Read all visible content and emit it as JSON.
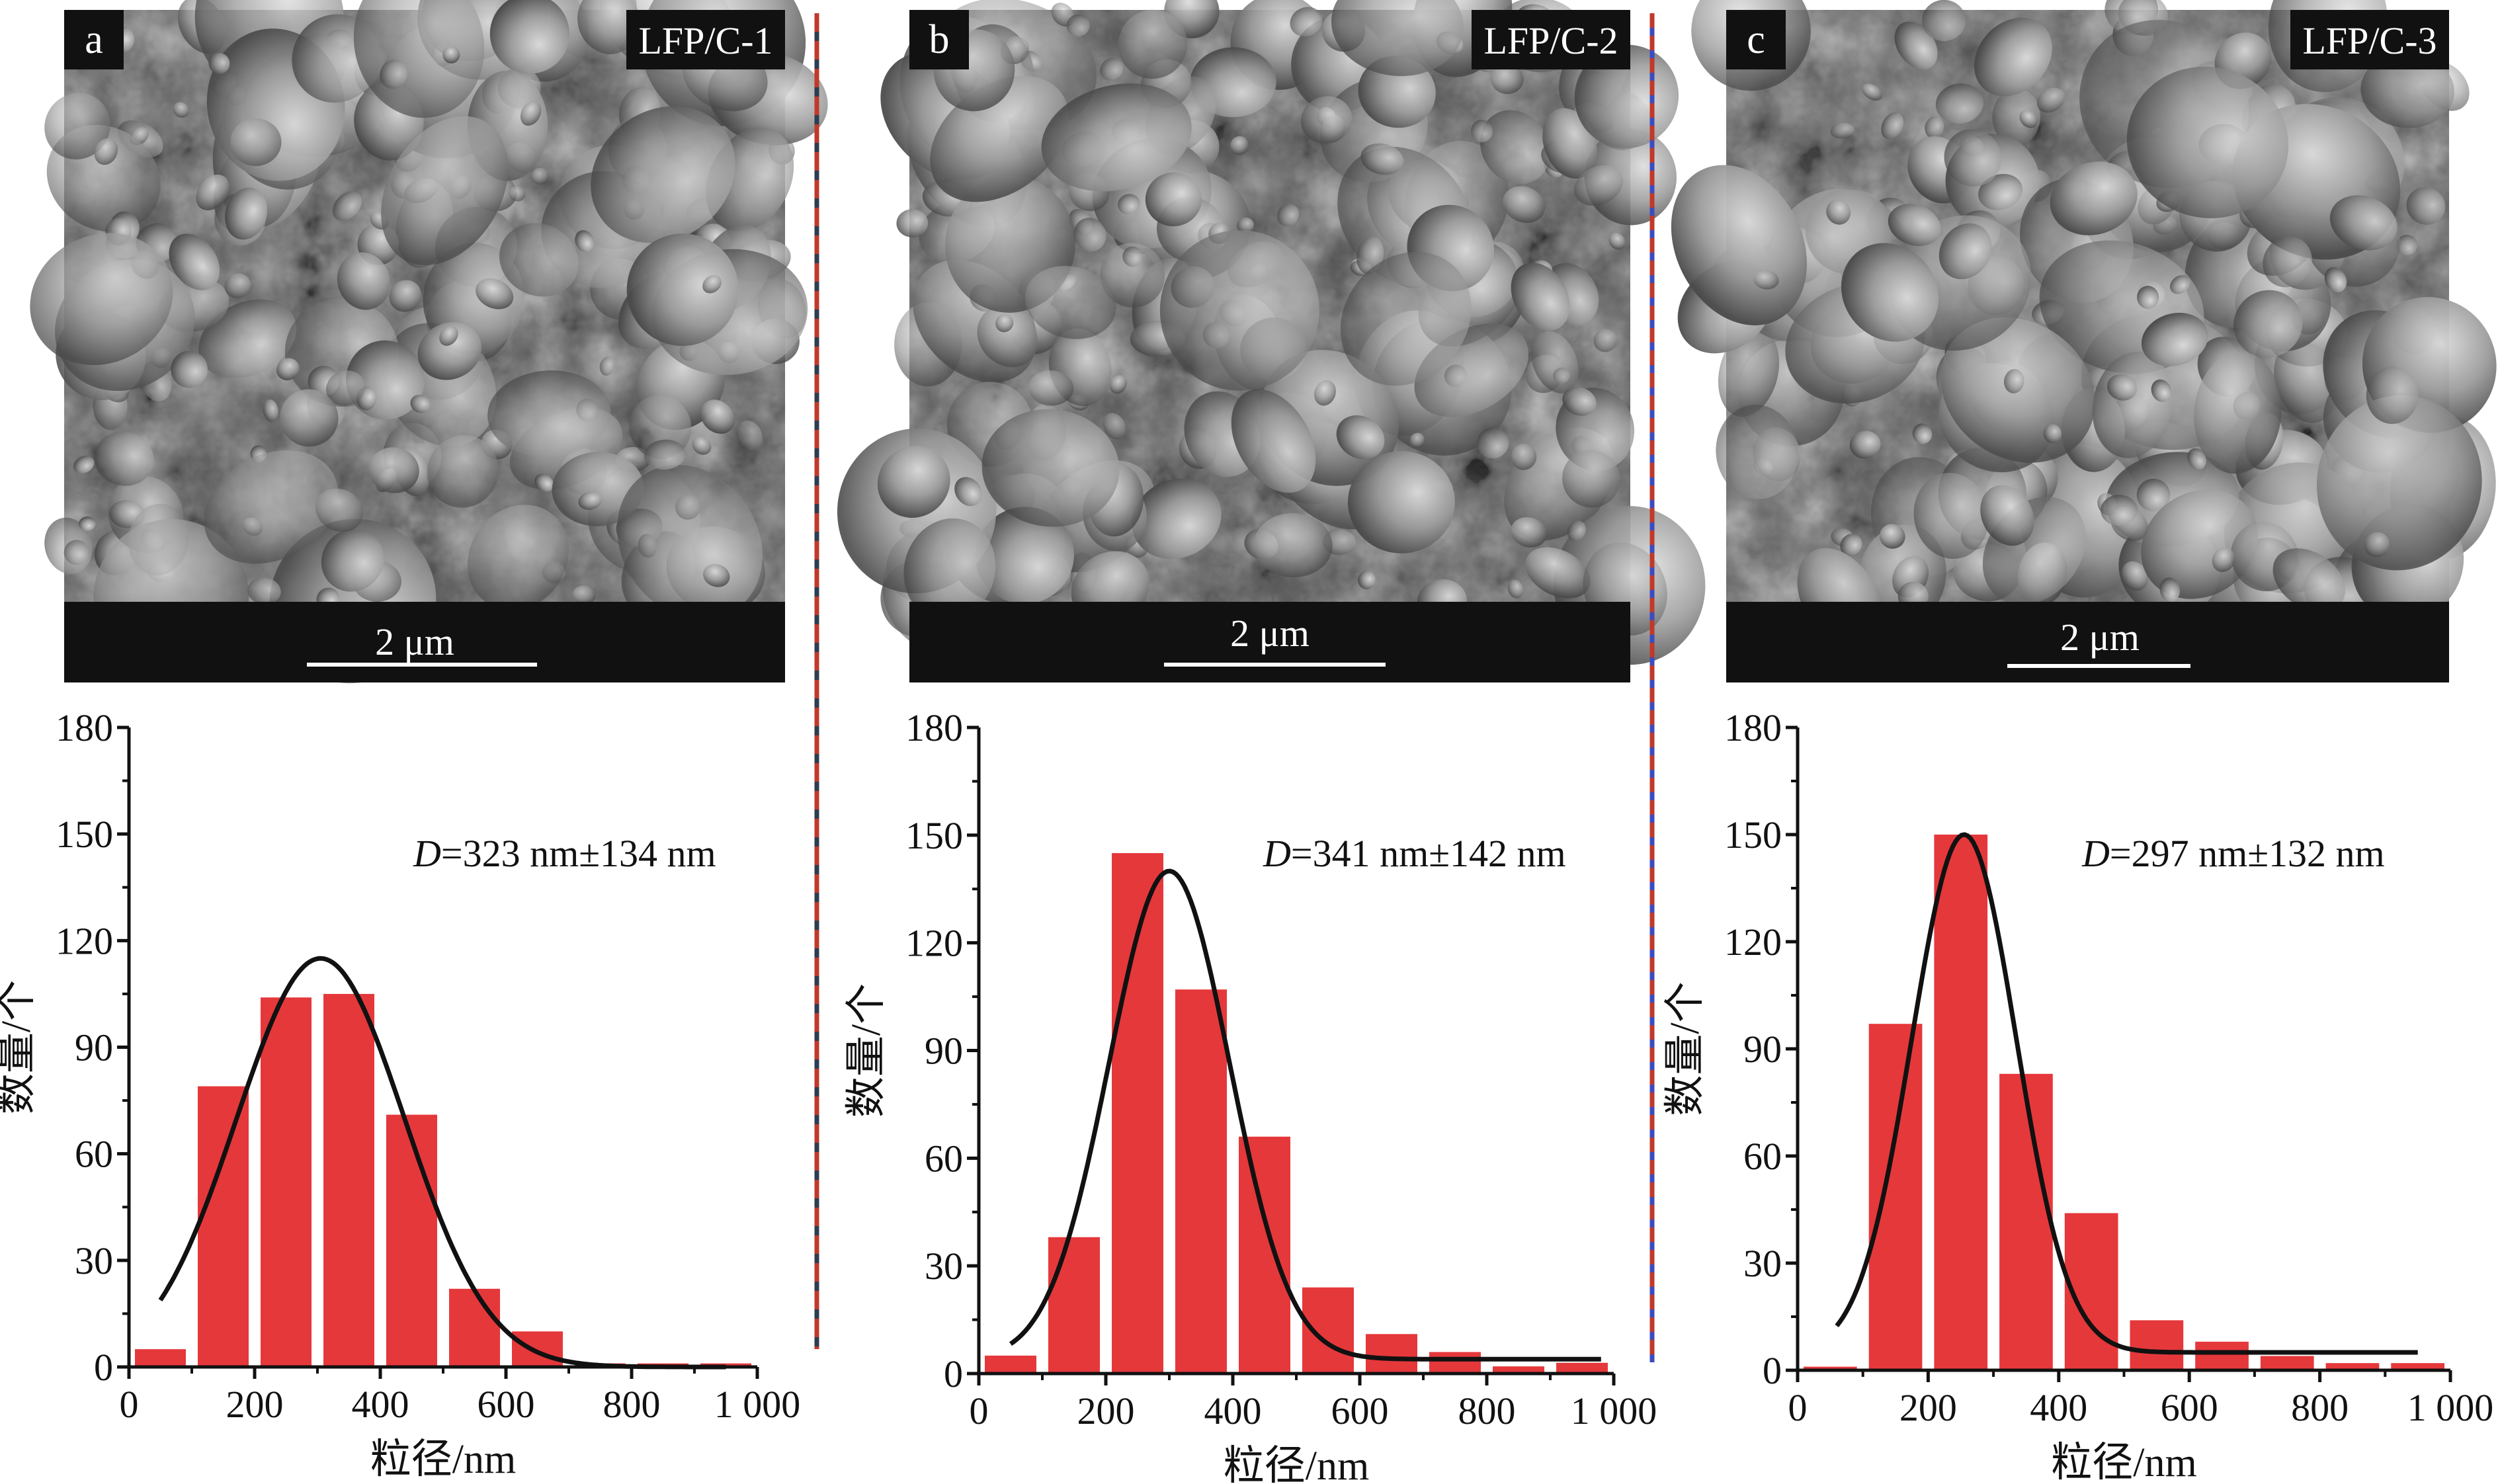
{
  "panels": [
    {
      "letter": "a",
      "sample": "LFP/C-1",
      "scale": "2 μm"
    },
    {
      "letter": "b",
      "sample": "LFP/C-2",
      "scale": "2 μm"
    },
    {
      "letter": "c",
      "sample": "LFP/C-3",
      "scale": "2 μm"
    }
  ],
  "colors": {
    "bar": "#e5383b",
    "fit_curve": "#111111",
    "axis": "#111111",
    "sem_background": "#5a5a5a",
    "divider_1": [
      "#c0392b",
      "#2c3e50"
    ],
    "divider_2": [
      "#c0392b",
      "#3b4cc0"
    ]
  },
  "chart_data": [
    {
      "type": "bar",
      "title": "",
      "xlabel": "粒径/nm",
      "ylabel": "数量/个",
      "xlim": [
        0,
        1000
      ],
      "ylim": [
        0,
        180
      ],
      "xticks": [
        "0",
        "200",
        "400",
        "600",
        "800",
        "1 000"
      ],
      "yticks": [
        "0",
        "30",
        "60",
        "90",
        "120",
        "150",
        "180"
      ],
      "annotation_symbol": "D",
      "annotation": "=323 nm±134 nm",
      "bin_centers": [
        50,
        150,
        250,
        350,
        450,
        550,
        650,
        750,
        850,
        950
      ],
      "values": [
        5,
        79,
        104,
        105,
        71,
        22,
        10,
        1,
        1,
        1
      ],
      "fit": {
        "type": "gaussian",
        "mean": 305,
        "sigma": 134,
        "peak": 115,
        "x_range": [
          50,
          950
        ]
      }
    },
    {
      "type": "bar",
      "title": "",
      "xlabel": "粒径/nm",
      "ylabel": "数量/个",
      "xlim": [
        0,
        1000
      ],
      "ylim": [
        0,
        180
      ],
      "xticks": [
        "0",
        "200",
        "400",
        "600",
        "800",
        "1 000"
      ],
      "yticks": [
        "0",
        "30",
        "60",
        "90",
        "120",
        "150",
        "180"
      ],
      "annotation_symbol": "D",
      "annotation": "=341 nm±142 nm",
      "bin_centers": [
        50,
        150,
        250,
        350,
        450,
        550,
        650,
        750,
        850,
        950
      ],
      "values": [
        5,
        38,
        145,
        107,
        66,
        24,
        11,
        6,
        2,
        3
      ],
      "fit": {
        "type": "gaussian",
        "mean": 300,
        "sigma": 95,
        "peak": 140,
        "x_range": [
          50,
          980
        ],
        "baseline": 4
      }
    },
    {
      "type": "bar",
      "title": "",
      "xlabel": "粒径/nm",
      "ylabel": "数量/个",
      "xlim": [
        0,
        1000
      ],
      "ylim": [
        0,
        180
      ],
      "xticks": [
        "0",
        "200",
        "400",
        "600",
        "800",
        "1 000"
      ],
      "yticks": [
        "0",
        "30",
        "60",
        "90",
        "120",
        "150",
        "180"
      ],
      "annotation_symbol": "D",
      "annotation": "=297 nm±132 nm",
      "bin_centers": [
        50,
        150,
        250,
        350,
        450,
        550,
        650,
        750,
        850,
        950
      ],
      "values": [
        1,
        97,
        150,
        83,
        44,
        14,
        8,
        4,
        2,
        2
      ],
      "fit": {
        "type": "gaussian",
        "mean": 255,
        "sigma": 80,
        "peak": 150,
        "x_range": [
          60,
          950
        ],
        "baseline": 5
      }
    }
  ]
}
